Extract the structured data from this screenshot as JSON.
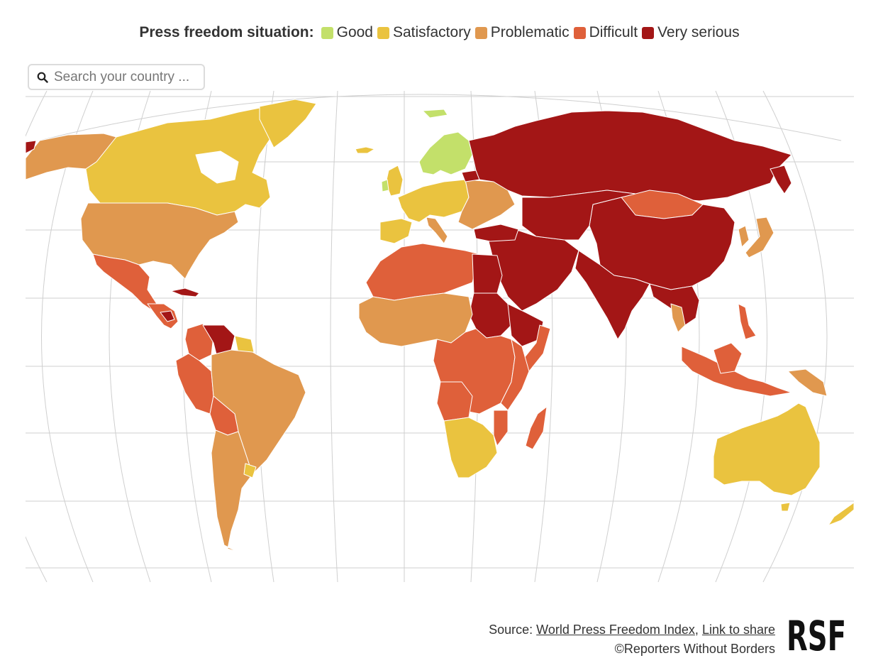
{
  "legend": {
    "title": "Press freedom situation:",
    "items": [
      {
        "label": "Good",
        "color": "#c3e06a"
      },
      {
        "label": "Satisfactory",
        "color": "#eac33f"
      },
      {
        "label": "Problematic",
        "color": "#e0984f"
      },
      {
        "label": "Difficult",
        "color": "#df603a"
      },
      {
        "label": "Very serious",
        "color": "#a31616"
      }
    ]
  },
  "search": {
    "placeholder": "Search your country ...",
    "icon": "search-icon"
  },
  "map": {
    "ocean_color": "#ffffff",
    "graticule_color": "#cfcfcf",
    "regions": [
      {
        "name": "Alaska",
        "category": "Problematic"
      },
      {
        "name": "Canada",
        "category": "Satisfactory"
      },
      {
        "name": "Greenland",
        "category": "Satisfactory"
      },
      {
        "name": "United States",
        "category": "Problematic"
      },
      {
        "name": "Mexico",
        "category": "Difficult"
      },
      {
        "name": "Cuba",
        "category": "Very serious"
      },
      {
        "name": "Central America",
        "category": "Difficult"
      },
      {
        "name": "Venezuela",
        "category": "Very serious"
      },
      {
        "name": "Colombia",
        "category": "Difficult"
      },
      {
        "name": "Brazil",
        "category": "Problematic"
      },
      {
        "name": "Argentina",
        "category": "Problematic"
      },
      {
        "name": "Bolivia",
        "category": "Difficult"
      },
      {
        "name": "Iceland",
        "category": "Good"
      },
      {
        "name": "Scandinavia",
        "category": "Good"
      },
      {
        "name": "Western Europe",
        "category": "Satisfactory"
      },
      {
        "name": "Eastern Europe",
        "category": "Problematic"
      },
      {
        "name": "Russia",
        "category": "Very serious"
      },
      {
        "name": "China",
        "category": "Very serious"
      },
      {
        "name": "Mongolia",
        "category": "Difficult"
      },
      {
        "name": "Middle East",
        "category": "Very serious"
      },
      {
        "name": "India",
        "category": "Very serious"
      },
      {
        "name": "North Africa",
        "category": "Difficult"
      },
      {
        "name": "Egypt",
        "category": "Very serious"
      },
      {
        "name": "Sudan",
        "category": "Very serious"
      },
      {
        "name": "West Africa",
        "category": "Problematic"
      },
      {
        "name": "Central Africa",
        "category": "Difficult"
      },
      {
        "name": "Southern Africa",
        "category": "Satisfactory"
      },
      {
        "name": "Madagascar",
        "category": "Difficult"
      },
      {
        "name": "Japan",
        "category": "Problematic"
      },
      {
        "name": "Southeast Asia",
        "category": "Difficult"
      },
      {
        "name": "Australia",
        "category": "Satisfactory"
      },
      {
        "name": "New Zealand",
        "category": "Satisfactory"
      }
    ]
  },
  "footer": {
    "source_prefix": "Source: ",
    "source_link": "World Press Freedom Index",
    "separator": ", ",
    "share_link": "Link to share",
    "copyright": "©Reporters Without Borders"
  },
  "logo": {
    "text": "RSF"
  }
}
